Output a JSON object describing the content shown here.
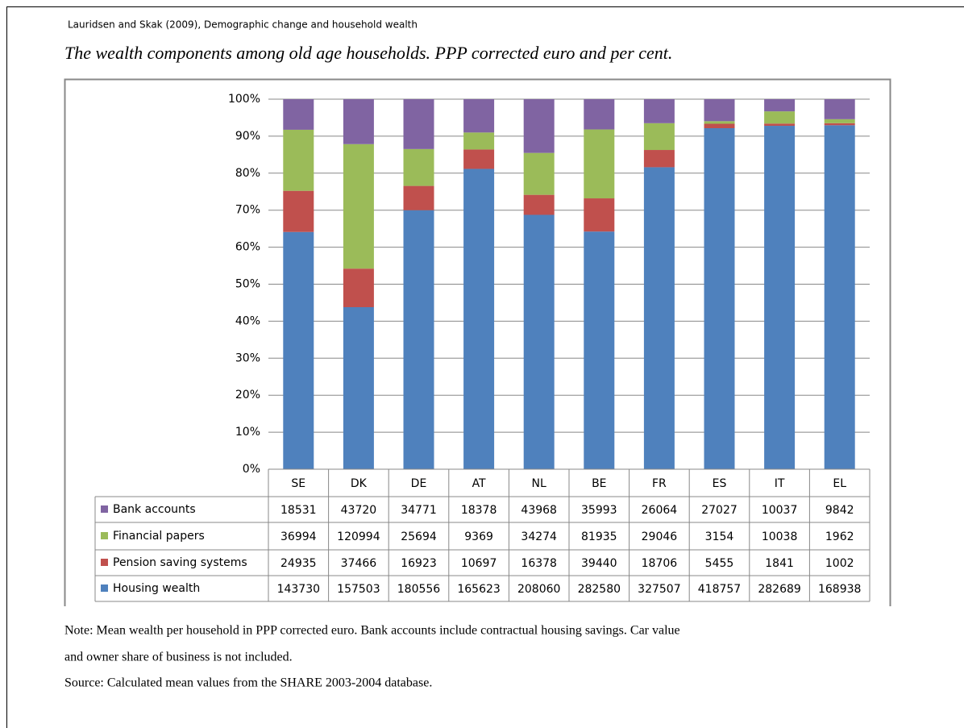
{
  "header": "Lauridsen and Skak (2009), Demographic change and household wealth",
  "chart_data": {
    "type": "bar",
    "stacking": "percent",
    "title": "The wealth components among old age households. PPP corrected euro and per cent.",
    "categories": [
      "SE",
      "DK",
      "DE",
      "AT",
      "NL",
      "BE",
      "FR",
      "ES",
      "IT",
      "EL"
    ],
    "series": [
      {
        "name": "Bank accounts",
        "color": "#8064a2",
        "values": [
          18531,
          43720,
          34771,
          18378,
          43968,
          35993,
          26064,
          27027,
          10037,
          9842
        ]
      },
      {
        "name": "Financial papers",
        "color": "#9bbb59",
        "values": [
          36994,
          120994,
          25694,
          9369,
          34274,
          81935,
          29046,
          3154,
          10038,
          1962
        ]
      },
      {
        "name": "Pension saving systems",
        "color": "#c0504d",
        "values": [
          24935,
          37466,
          16923,
          10697,
          16378,
          39440,
          18706,
          5455,
          1841,
          1002
        ]
      },
      {
        "name": "Housing wealth",
        "color": "#4f81bd",
        "values": [
          143730,
          157503,
          180556,
          165623,
          208060,
          282580,
          327507,
          418757,
          282689,
          168938
        ]
      }
    ],
    "ylim": [
      0,
      100
    ],
    "yticks": [
      {
        "value": 0,
        "label": "0%"
      },
      {
        "value": 10,
        "label": "10%"
      },
      {
        "value": 20,
        "label": "20%"
      },
      {
        "value": 30,
        "label": "30%"
      },
      {
        "value": 40,
        "label": "40%"
      },
      {
        "value": 50,
        "label": "50%"
      },
      {
        "value": 60,
        "label": "60%"
      },
      {
        "value": 70,
        "label": "70%"
      },
      {
        "value": 80,
        "label": "80%"
      },
      {
        "value": 90,
        "label": "90%"
      },
      {
        "value": 100,
        "label": "100%"
      }
    ],
    "grid": true,
    "data_table": true
  },
  "notes": [
    "Note: Mean wealth per household in PPP corrected euro. Bank accounts include contractual housing savings. Car value",
    "and owner share of business is not included.",
    "Source: Calculated mean values from the SHARE 2003-2004 database."
  ]
}
